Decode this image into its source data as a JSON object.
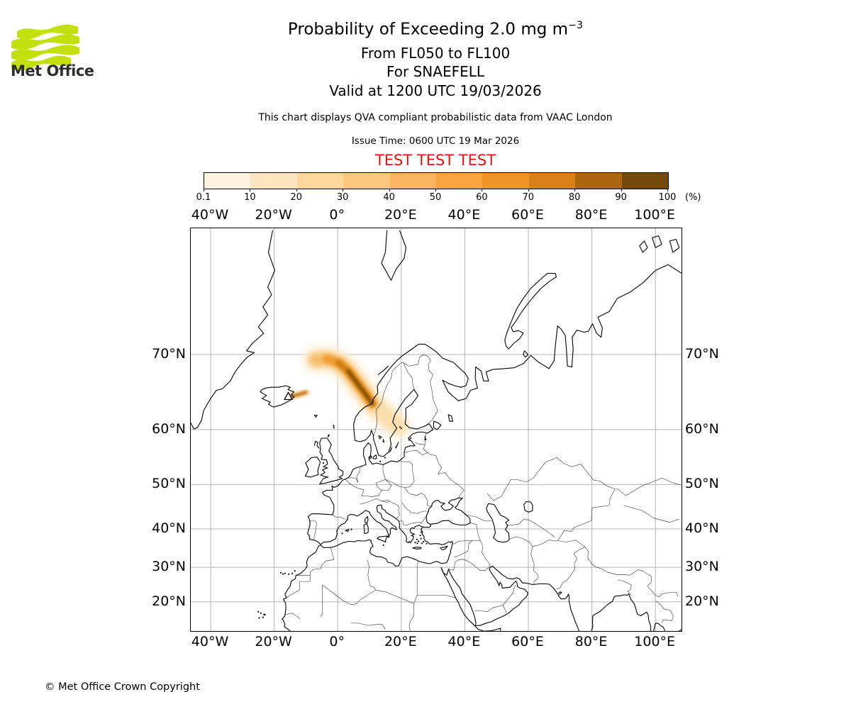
{
  "header": {
    "logo_text": "Met Office",
    "brand_green": "#c3e00e",
    "title_main": "Probability of Exceeding 2.0 mg m",
    "title_superscript": "−3",
    "subtitle_flight_levels": "From FL050 to FL100",
    "subtitle_volcano": "For SNAEFELL",
    "subtitle_valid": "Valid at 1200 UTC 19/03/2026",
    "qva_note": "This chart displays QVA compliant probabilistic data from VAAC London",
    "issue_time": "Issue Time: 0600 UTC 19 Mar 2026",
    "test_banner": "TEST TEST TEST",
    "test_color": "#e01414"
  },
  "colorbar": {
    "unit_label": "(%)",
    "ticks": [
      "0.1",
      "10",
      "20",
      "30",
      "40",
      "50",
      "60",
      "70",
      "80",
      "90",
      "100"
    ],
    "colors": [
      "#fdf3de",
      "#fce5bf",
      "#fdd69c",
      "#fdc77e",
      "#fcb55e",
      "#faa43f",
      "#f09428",
      "#d98016",
      "#ab660f",
      "#72490a"
    ]
  },
  "axes": {
    "lon_labels": [
      "40°W",
      "20°W",
      "0°",
      "20°E",
      "40°E",
      "60°E",
      "80°E",
      "100°E"
    ],
    "lon_values": [
      -40,
      -20,
      0,
      20,
      40,
      60,
      80,
      100
    ],
    "lat_labels": [
      "70°N",
      "60°N",
      "50°N",
      "40°N",
      "30°N",
      "20°N"
    ],
    "lat_values": [
      70,
      60,
      50,
      40,
      30,
      20
    ],
    "grid_color": "#b3b3b3"
  },
  "chart_data": {
    "type": "heatmap",
    "title": "Probability of Exceeding 2.0 mg m⁻³",
    "flight_levels": "FL050 to FL100",
    "volcano_name": "SNAEFELL",
    "valid_time": "1200 UTC 19/03/2026",
    "issue_time": "0600 UTC 19 Mar 2026",
    "source": "VAAC London",
    "probability_levels_percent": [
      0.1,
      10,
      20,
      30,
      40,
      50,
      60,
      70,
      80,
      90,
      100
    ],
    "level_colors": [
      "#fdf3de",
      "#fce5bf",
      "#fdd69c",
      "#fdc77e",
      "#fcb55e",
      "#faa43f",
      "#f09428",
      "#d98016",
      "#ab660f",
      "#72490a"
    ],
    "map_extent": {
      "lon_min": -46.3,
      "lon_max": 108.3,
      "lat_min": 10.5,
      "lat_max": 80.0,
      "projection": "Mercator"
    },
    "volcano": {
      "name": "SNAEFELL",
      "lon": -15.55,
      "lat": 64.85,
      "marker": "triangle"
    },
    "plume": {
      "description": "Ash probability plume arcs from the volcano in eastern Iceland northeast over the Norwegian Sea then southeast to the Norwegian coast, peak probabilities above 90% in the core; a weak (10-30%) tail extends southeast into central Sweden",
      "max_percent": 95,
      "centerline_lonlat": [
        [
          -7.0,
          69.4
        ],
        [
          -3.4,
          69.5
        ],
        [
          0.2,
          69.1
        ],
        [
          3.3,
          68.1
        ],
        [
          6.4,
          66.5
        ],
        [
          8.9,
          65.1
        ],
        [
          10.9,
          63.9
        ]
      ],
      "tail_lonlat": [
        [
          10.9,
          63.9
        ],
        [
          13.6,
          62.8
        ],
        [
          16.7,
          61.4
        ],
        [
          18.9,
          60.6
        ]
      ],
      "core_lonlat": [
        [
          -3.4,
          69.5
        ],
        [
          0.2,
          69.1
        ],
        [
          3.3,
          68.1
        ],
        [
          6.4,
          66.5
        ],
        [
          8.9,
          65.1
        ],
        [
          10.9,
          63.9
        ]
      ],
      "dark_core_lonlat": [
        [
          3.3,
          68.1
        ],
        [
          6.4,
          66.5
        ],
        [
          8.9,
          65.1
        ],
        [
          10.9,
          63.9
        ]
      ],
      "source_streak_lonlat": [
        [
          -15.0,
          64.85
        ],
        [
          -12.3,
          65.15
        ],
        [
          -9.9,
          65.45
        ]
      ]
    }
  },
  "footer": {
    "copyright": "© Met Office Crown Copyright"
  }
}
